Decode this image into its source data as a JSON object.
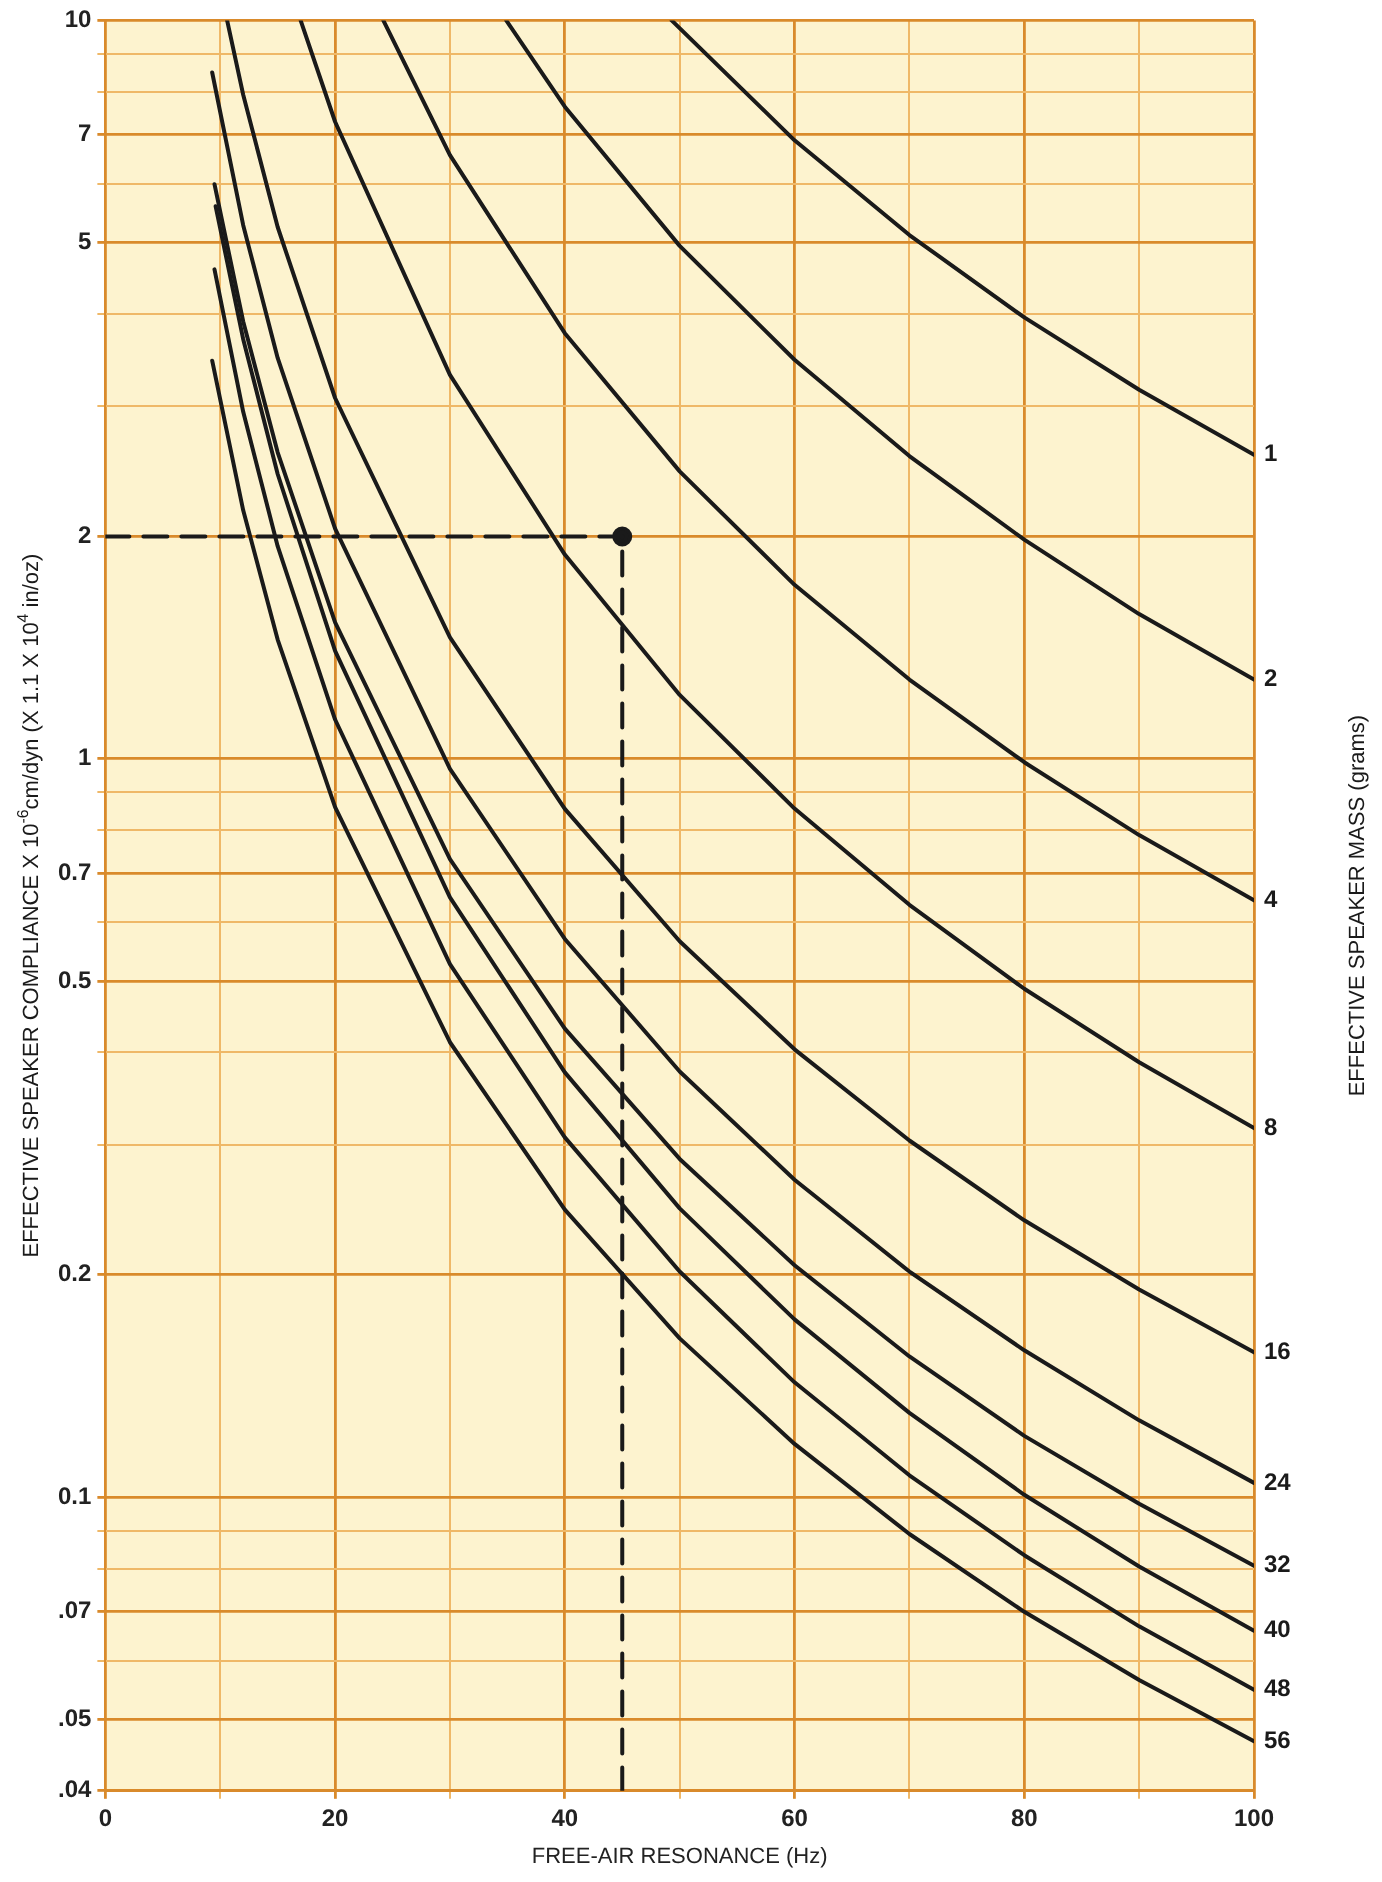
{
  "chart_data": {
    "type": "line",
    "xlabel": "FREE-AIR RESONANCE (Hz)",
    "ylabel": "EFFECTIVE SPEAKER COMPLIANCE X 10$^{-6}$cm/dyn (X 1.1 X 10$^{4}$ in/oz)",
    "y2label": "EFFECTIVE SPEAKER MASS (grams)",
    "xlim": [
      0,
      100
    ],
    "xticks": [
      0,
      {
        "value": 10,
        "label": null
      },
      20,
      {
        "value": 30,
        "label": null
      },
      40,
      {
        "value": 50,
        "label": null
      },
      60,
      {
        "value": 70,
        "label": null
      },
      80,
      {
        "value": 90,
        "label": null
      },
      100
    ],
    "ylim": [
      0.04,
      10
    ],
    "yticks": [
      {
        "value": 0.04,
        "label": ".04"
      },
      {
        "value": 0.05,
        "label": ".05"
      },
      {
        "value": 0.06,
        "label": null
      },
      {
        "value": 0.07,
        "label": ".07"
      },
      {
        "value": 0.08,
        "label": null
      },
      {
        "value": 0.09,
        "label": null
      },
      {
        "value": 0.1,
        "label": "0.1"
      },
      0.2,
      {
        "value": 0.3,
        "label": null
      },
      {
        "value": 0.4,
        "label": null
      },
      0.5,
      {
        "value": 0.6,
        "label": null
      },
      0.7,
      {
        "value": 0.8,
        "label": null
      },
      {
        "value": 0.9,
        "label": null
      },
      1,
      2,
      {
        "value": 3,
        "label": null
      },
      {
        "value": 4,
        "label": null
      },
      5,
      {
        "value": 6,
        "label": null
      },
      7,
      {
        "value": 8,
        "label": null
      },
      {
        "value": 9,
        "label": null
      },
      10
    ],
    "log": "y",
    "grid": true,
    "legend": false,
    "marker": "none",
    "line_style": "solid",
    "series": [
      {
        "name": "1",
        "color": "#1a1a1a",
        "x": [
          49.3,
          60,
          70,
          80,
          90,
          100
        ],
        "values": [
          10,
          6.88,
          5.12,
          3.96,
          3.16,
          2.58
        ]
      },
      {
        "name": "2",
        "color": "#1a1a1a",
        "x": [
          34.9,
          40,
          50,
          60,
          70,
          80,
          90,
          100
        ],
        "values": [
          10,
          7.64,
          4.95,
          3.47,
          2.57,
          1.98,
          1.57,
          1.28
        ]
      },
      {
        "name": "4",
        "color": "#1a1a1a",
        "x": [
          24.2,
          30,
          40,
          50,
          60,
          70,
          80,
          90,
          100
        ],
        "values": [
          10,
          6.57,
          3.77,
          2.45,
          1.72,
          1.28,
          0.989,
          0.788,
          0.643
        ]
      },
      {
        "name": "8",
        "color": "#1a1a1a",
        "x": [
          17,
          20,
          30,
          40,
          50,
          60,
          70,
          80,
          90,
          100
        ],
        "values": [
          10,
          7.29,
          3.31,
          1.89,
          1.22,
          0.856,
          0.634,
          0.488,
          0.388,
          0.316
        ]
      },
      {
        "name": "16",
        "color": "#1a1a1a",
        "x": [
          10.6,
          12,
          15,
          20,
          30,
          40,
          50,
          60,
          70,
          80,
          90,
          100
        ],
        "values": [
          10,
          7.93,
          5.25,
          3.08,
          1.46,
          0.855,
          0.566,
          0.404,
          0.304,
          0.237,
          0.191,
          0.157
        ]
      },
      {
        "name": "24",
        "color": "#1a1a1a",
        "x": [
          9.3,
          12,
          15,
          20,
          30,
          40,
          50,
          60,
          70,
          80,
          90,
          100
        ],
        "values": [
          8.5,
          5.28,
          3.49,
          2.05,
          0.969,
          0.57,
          0.377,
          0.269,
          0.202,
          0.158,
          0.127,
          0.1045
        ]
      },
      {
        "name": "32",
        "color": "#1a1a1a",
        "x": [
          9.5,
          12,
          15,
          20,
          30,
          40,
          50,
          60,
          70,
          80,
          90,
          100
        ],
        "values": [
          6,
          3.91,
          2.6,
          1.53,
          0.731,
          0.431,
          0.287,
          0.206,
          0.155,
          0.121,
          0.0979,
          0.0807
        ]
      },
      {
        "name": "40",
        "color": "#1a1a1a",
        "x": [
          9.6,
          12,
          15,
          20,
          30,
          40,
          50,
          60,
          70,
          80,
          90,
          100
        ],
        "values": [
          5.6,
          3.7,
          2.43,
          1.4,
          0.649,
          0.376,
          0.246,
          0.174,
          0.13,
          0.1007,
          0.0805,
          0.0659
        ]
      },
      {
        "name": "48",
        "color": "#1a1a1a",
        "x": [
          9.5,
          12,
          15,
          20,
          30,
          40,
          50,
          60,
          70,
          80,
          90,
          100
        ],
        "values": [
          4.6,
          2.95,
          1.94,
          1.13,
          0.527,
          0.307,
          0.202,
          0.143,
          0.107,
          0.0834,
          0.0668,
          0.0548
        ]
      },
      {
        "name": "56",
        "color": "#1a1a1a",
        "x": [
          9.3,
          12,
          15,
          20,
          30,
          40,
          50,
          60,
          70,
          80,
          90,
          100
        ],
        "values": [
          3.46,
          2.17,
          1.45,
          0.86,
          0.413,
          0.245,
          0.164,
          0.118,
          0.0891,
          0.0699,
          0.0565,
          0.0467
        ]
      },
      {
        "color": "#1a1a1a",
        "x": [
          0,
          45,
          45
        ],
        "values": [
          2,
          2,
          0.04
        ],
        "line_style": "dashed"
      },
      {
        "type": "scatter",
        "color": "#1a1a1a",
        "x": [
          45
        ],
        "values": [
          2
        ],
        "marker": "circle"
      }
    ]
  }
}
